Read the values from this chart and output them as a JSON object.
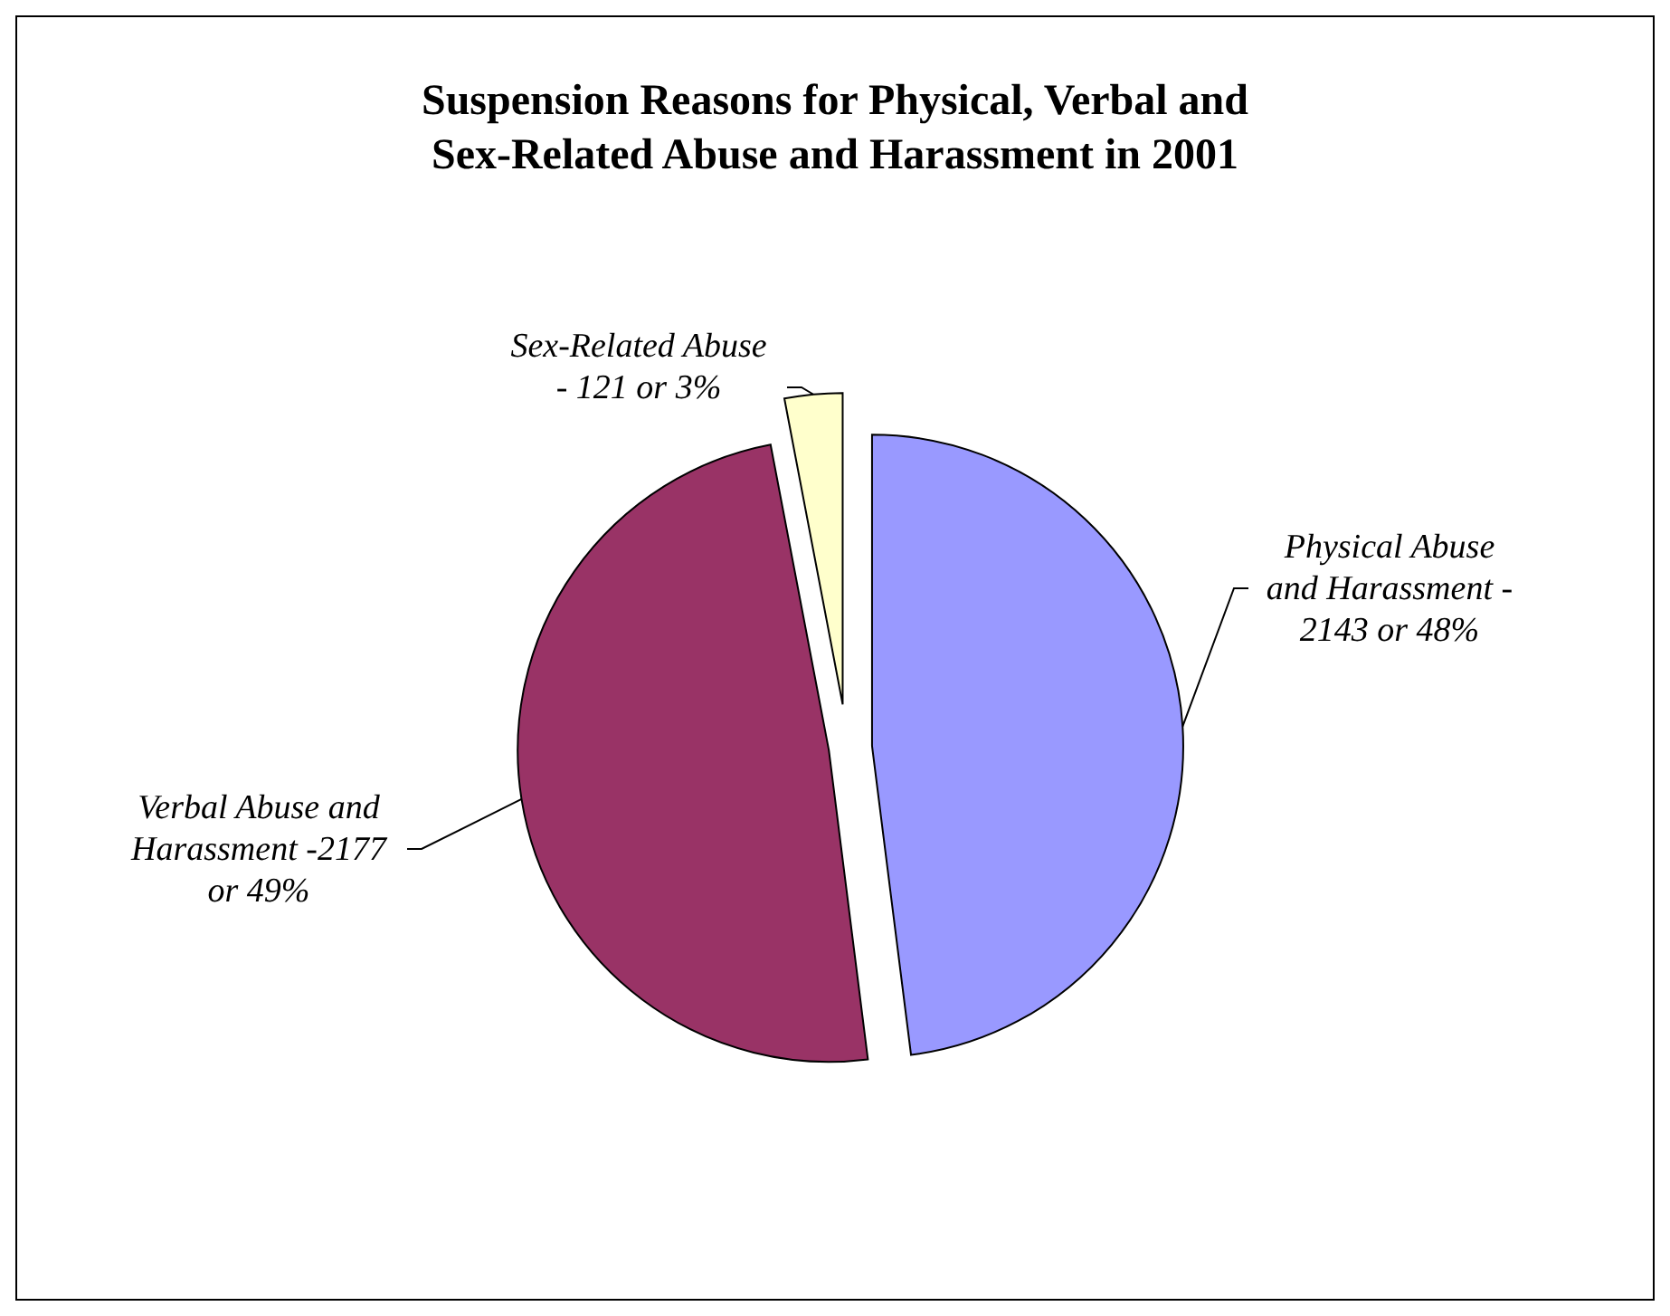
{
  "chart_data": {
    "type": "pie",
    "title": "Suspension Reasons for Physical, Verbal and Sex-Related Abuse and Harassment in 2001",
    "categories": [
      "Physical Abuse and Harassment - 2143 or 48%",
      "Verbal Abuse and Harassment -2177 or 49%",
      "Sex-Related Abuse - 121 or 3%"
    ],
    "values": [
      48,
      49,
      3
    ],
    "colors": [
      "#9999ff",
      "#993366",
      "#ffffcc"
    ]
  }
}
